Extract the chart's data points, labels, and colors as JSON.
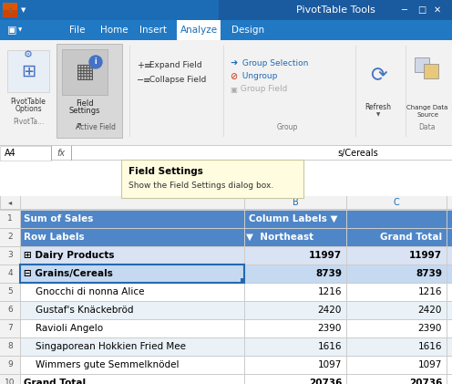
{
  "title_bar_text": "PivotTable Tools",
  "ribbon_tabs": [
    "File",
    "Home",
    "Insert",
    "Analyze",
    "Design"
  ],
  "active_tab": "Analyze",
  "formula_bar_cell": "A4",
  "formula_bar_text": "s/Cereals",
  "tooltip_title": "Field Settings",
  "tooltip_body": "Show the Field Settings dialog box.",
  "spreadsheet_rows": [
    {
      "row": 1,
      "col_a": "Sum of Sales",
      "col_b": "Column Labels ▼",
      "col_c": "",
      "bg": "#4E86C8",
      "fg": "#FFFFFF",
      "bold": true
    },
    {
      "row": 2,
      "col_a": "Row Labels",
      "col_b": "▼  Northeast",
      "col_c": "Grand Total",
      "bg": "#4E86C8",
      "fg": "#FFFFFF",
      "bold": true
    },
    {
      "row": 3,
      "col_a": "⊞ Dairy Products",
      "col_b": "11997",
      "col_c": "11997",
      "bg": "#DAE3F3",
      "fg": "#000000",
      "bold": true
    },
    {
      "row": 4,
      "col_a": "⊟ Grains/Cereals",
      "col_b": "8739",
      "col_c": "8739",
      "bg": "#C5D9F1",
      "fg": "#000000",
      "bold": true,
      "selected": true
    },
    {
      "row": 5,
      "col_a": "    Gnocchi di nonna Alice",
      "col_b": "1216",
      "col_c": "1216",
      "bg": "#FFFFFF",
      "fg": "#000000",
      "bold": false
    },
    {
      "row": 6,
      "col_a": "    Gustaf's Knäckebröd",
      "col_b": "2420",
      "col_c": "2420",
      "bg": "#EAF2F8",
      "fg": "#000000",
      "bold": false
    },
    {
      "row": 7,
      "col_a": "    Ravioli Angelo",
      "col_b": "2390",
      "col_c": "2390",
      "bg": "#FFFFFF",
      "fg": "#000000",
      "bold": false
    },
    {
      "row": 8,
      "col_a": "    Singaporean Hokkien Fried Mee",
      "col_b": "1616",
      "col_c": "1616",
      "bg": "#EAF2F8",
      "fg": "#000000",
      "bold": false
    },
    {
      "row": 9,
      "col_a": "    Wimmers gute Semmelknödel",
      "col_b": "1097",
      "col_c": "1097",
      "bg": "#FFFFFF",
      "fg": "#000000",
      "bold": false
    },
    {
      "row": 10,
      "col_a": "Grand Total",
      "col_b": "20736",
      "col_c": "20736",
      "bg": "#FFFFFF",
      "fg": "#000000",
      "bold": true
    }
  ]
}
